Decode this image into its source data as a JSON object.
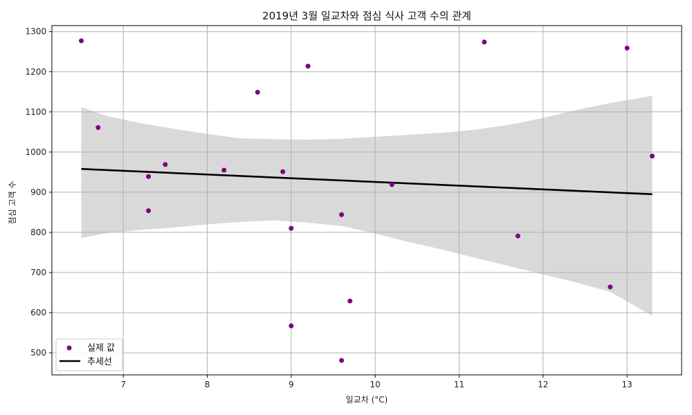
{
  "chart_data": {
    "type": "scatter",
    "title": "2019년 3월 일교차와 점심 식사 고객 수의 관계",
    "xlabel": "일교차 (°C)",
    "ylabel": "점심 고객 수",
    "xlim": [
      6.15,
      13.65
    ],
    "ylim": [
      445,
      1315
    ],
    "xticks": [
      7,
      8,
      9,
      10,
      11,
      12,
      13
    ],
    "yticks": [
      500,
      600,
      700,
      800,
      900,
      1000,
      1100,
      1200,
      1300
    ],
    "grid": true,
    "legend_position": "bottom-left",
    "points": {
      "name": "실제 값",
      "color": "#800080",
      "x": [
        6.5,
        6.7,
        7.3,
        7.3,
        7.5,
        8.2,
        8.6,
        8.9,
        9.0,
        9.0,
        9.2,
        9.6,
        9.6,
        9.7,
        10.2,
        11.3,
        11.7,
        12.8,
        13.0,
        13.3
      ],
      "y": [
        1277,
        1061,
        939,
        854,
        969,
        955,
        1149,
        951,
        810,
        567,
        1214,
        844,
        481,
        629,
        919,
        1274,
        791,
        664,
        1259,
        990
      ]
    },
    "trend": {
      "name": "추세선",
      "color": "#000000",
      "x": [
        6.5,
        13.3
      ],
      "y": [
        958,
        895
      ]
    },
    "confidence_band": {
      "color": "#d9d9d9",
      "x": [
        6.5,
        6.8,
        7.2,
        7.6,
        8.0,
        8.4,
        8.8,
        9.2,
        9.6,
        10.0,
        10.4,
        10.8,
        11.2,
        11.6,
        12.0,
        12.4,
        12.8,
        13.3
      ],
      "upper": [
        1112,
        1090,
        1072,
        1058,
        1045,
        1034,
        1032,
        1031,
        1033,
        1038,
        1043,
        1048,
        1056,
        1068,
        1085,
        1105,
        1122,
        1140
      ],
      "lower": [
        786,
        798,
        806,
        812,
        820,
        826,
        830,
        824,
        816,
        797,
        776,
        757,
        736,
        716,
        695,
        675,
        652,
        592
      ]
    }
  }
}
